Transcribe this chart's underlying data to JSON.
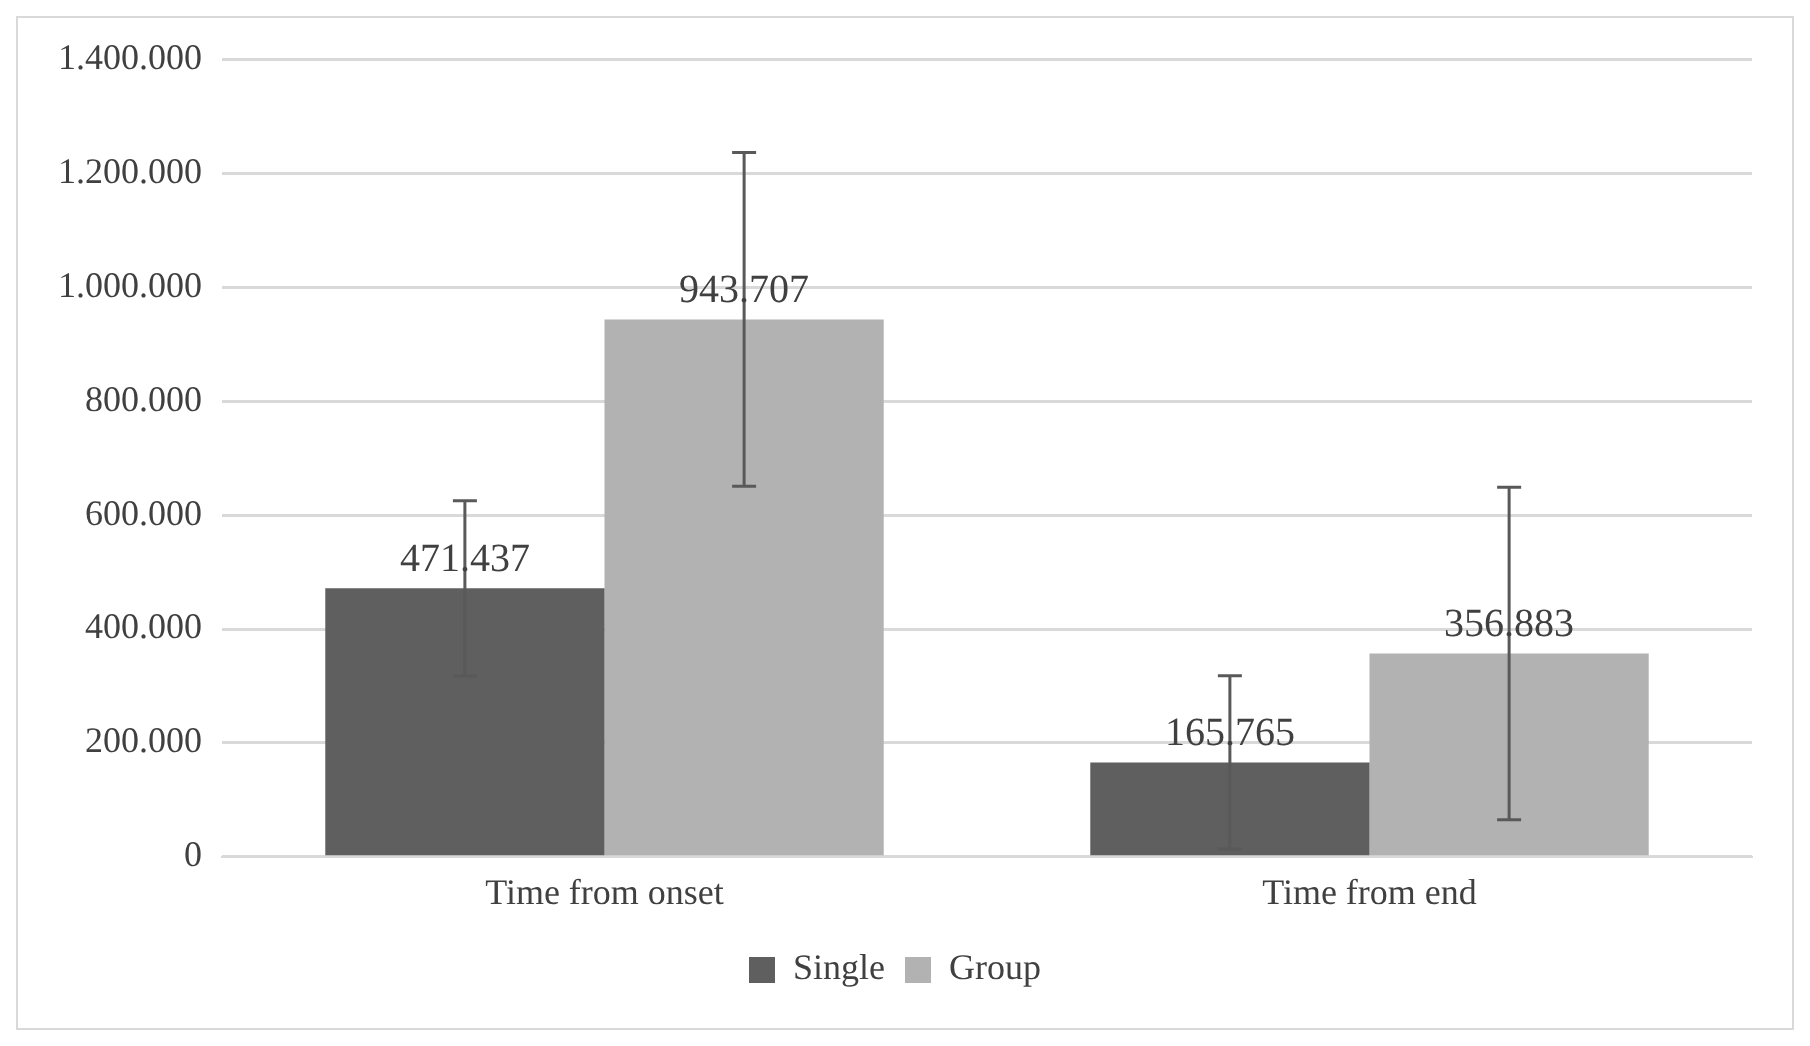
{
  "chart_data": {
    "type": "bar",
    "categories": [
      "Time from onset",
      "Time from end"
    ],
    "series": [
      {
        "name": "Single",
        "color": "#5f5f5f",
        "values": [
          471437,
          165765
        ],
        "errors": [
          154000,
          152000
        ],
        "value_labels": [
          "471.437",
          "165.765"
        ]
      },
      {
        "name": "Group",
        "color": "#b2b2b2",
        "values": [
          943707,
          356883
        ],
        "errors": [
          293000,
          292000
        ],
        "value_labels": [
          "943.707",
          "356.883"
        ]
      }
    ],
    "ylim": [
      0,
      1400000
    ],
    "yticks": [
      0,
      {
        "value": 200000,
        "label": "200.000"
      },
      {
        "value": 400000,
        "label": "400.000"
      },
      {
        "value": 600000,
        "label": "600.000"
      },
      {
        "value": 800000,
        "label": "800.000"
      },
      {
        "value": 1000000,
        "label": "1.000.000"
      },
      {
        "value": 1200000,
        "label": "1.200.000"
      },
      {
        "value": 1400000,
        "label": "1.400.000"
      }
    ],
    "grid": "y",
    "legend": "bottom"
  }
}
